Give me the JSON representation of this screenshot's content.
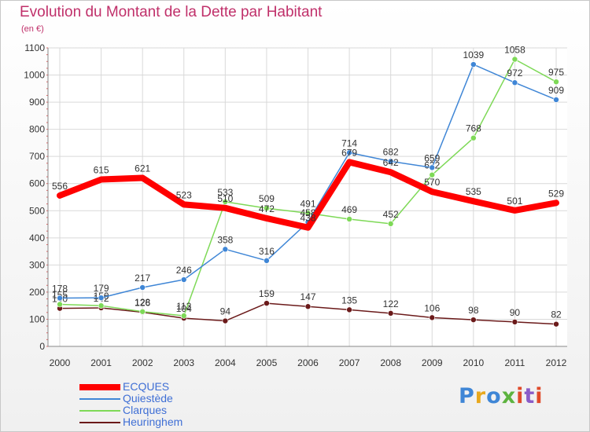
{
  "title": "Evolution du Montant de la Dette par Habitant",
  "subtitle": "(en €)",
  "logo": {
    "text": "Proxiti",
    "colors": [
      "#3f86d6",
      "#e8a81d",
      "#3f86d6",
      "#5db33f",
      "#e04a2a",
      "#8a5cc8",
      "#e04a2a"
    ]
  },
  "chart_data": {
    "type": "line",
    "title": "Evolution du Montant de la Dette par Habitant",
    "ylabel": "(en €)",
    "x": [
      "2000",
      "2001",
      "2002",
      "2003",
      "2004",
      "2005",
      "2006",
      "2007",
      "2008",
      "2009",
      "2010",
      "2011",
      "2012"
    ],
    "ylim": [
      0,
      1100
    ],
    "yticks": [
      0,
      100,
      200,
      300,
      400,
      500,
      600,
      700,
      800,
      900,
      1000,
      1100
    ],
    "grid": true,
    "legend_position": "bottom-left",
    "series": [
      {
        "name": "ECQUES",
        "color": "#ff0000",
        "values": [
          556,
          615,
          621,
          523,
          510,
          472,
          438,
          679,
          642,
          570,
          535,
          501,
          529
        ]
      },
      {
        "name": "Quiestède",
        "color": "#3f86d6",
        "values": [
          178,
          179,
          217,
          246,
          358,
          316,
          458,
          714,
          682,
          659,
          1039,
          972,
          909
        ]
      },
      {
        "name": "Clarques",
        "color": "#7ed957",
        "values": [
          155,
          150,
          128,
          113,
          533,
          509,
          491,
          469,
          452,
          632,
          768,
          1058,
          975
        ]
      },
      {
        "name": "Heuringhem",
        "color": "#6b1a1a",
        "values": [
          140,
          142,
          126,
          104,
          94,
          159,
          147,
          135,
          122,
          106,
          98,
          90,
          82
        ]
      }
    ]
  }
}
